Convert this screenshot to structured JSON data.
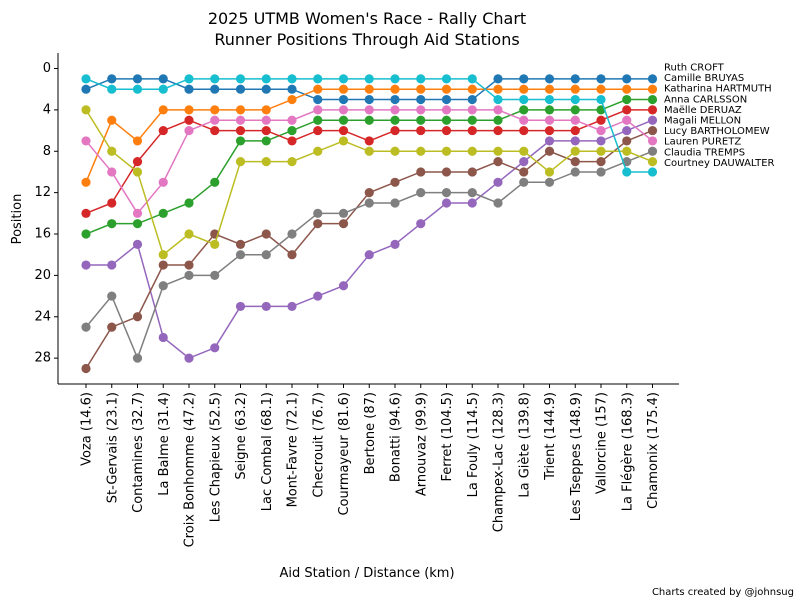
{
  "chart_data": {
    "type": "line",
    "title": "2025 UTMB Women's Race - Rally Chart",
    "subtitle": "Runner Positions Through Aid Stations",
    "xlabel": "Aid Station / Distance (km)",
    "ylabel": "Position",
    "ylim": [
      30.5,
      -1.5
    ],
    "y_inverted": true,
    "yticks": [
      0,
      4,
      8,
      12,
      16,
      20,
      24,
      28
    ],
    "grid": false,
    "credit": "Charts created by @johnsug",
    "categories": [
      "Voza (14.6)",
      "St-Gervais (23.1)",
      "Contamines (32.7)",
      "La Balme (31.4)",
      "Croix Bonhomme (47.2)",
      "Les Chapieux (52.5)",
      "Seigne (63.2)",
      "Lac Combal (68.1)",
      "Mont-Favre (72.1)",
      "Checrouit (76.7)",
      "Courmayeur (81.6)",
      "Bertone (87)",
      "Bonatti (94.6)",
      "Arnouvaz (99.9)",
      "Ferret (104.5)",
      "La Fouly (114.5)",
      "Champex-Lac (128.3)",
      "La Giète (139.8)",
      "Trient (144.9)",
      "Les Tseppes (148.9)",
      "Vallorcine (157)",
      "La Flégère (168.3)",
      "Chamonix (175.4)"
    ],
    "series": [
      {
        "name": "Ruth CROFT",
        "color": "#1f77b4",
        "values": [
          2,
          1,
          1,
          1,
          2,
          2,
          2,
          2,
          2,
          3,
          3,
          3,
          3,
          3,
          3,
          3,
          1,
          1,
          1,
          1,
          1,
          1,
          1
        ]
      },
      {
        "name": "Camille BRUYAS",
        "color": "#ff7f0e",
        "values": [
          11,
          5,
          7,
          4,
          4,
          4,
          4,
          4,
          3,
          2,
          2,
          2,
          2,
          2,
          2,
          2,
          2,
          2,
          2,
          2,
          2,
          2,
          2
        ]
      },
      {
        "name": "Katharina HARTMUTH",
        "color": "#2ca02c",
        "values": [
          16,
          15,
          15,
          14,
          13,
          11,
          7,
          7,
          6,
          5,
          5,
          5,
          5,
          5,
          5,
          5,
          5,
          4,
          4,
          4,
          4,
          3,
          3
        ]
      },
      {
        "name": "Anna CARLSSON",
        "color": "#d62728",
        "values": [
          14,
          13,
          9,
          6,
          5,
          6,
          6,
          6,
          7,
          6,
          6,
          7,
          6,
          6,
          6,
          6,
          6,
          6,
          6,
          6,
          5,
          4,
          4
        ]
      },
      {
        "name": "Maëlle DERUAZ",
        "color": "#9467bd",
        "values": [
          19,
          19,
          17,
          26,
          28,
          27,
          23,
          23,
          23,
          22,
          21,
          18,
          17,
          15,
          13,
          13,
          11,
          9,
          7,
          7,
          7,
          6,
          5
        ]
      },
      {
        "name": "Magali MELLON",
        "color": "#8c564b",
        "values": [
          29,
          25,
          24,
          19,
          19,
          16,
          17,
          16,
          18,
          15,
          15,
          12,
          11,
          10,
          10,
          10,
          9,
          10,
          8,
          9,
          9,
          7,
          6
        ]
      },
      {
        "name": "Lucy BARTHOLOMEW",
        "color": "#e377c2",
        "values": [
          7,
          10,
          14,
          11,
          6,
          5,
          5,
          5,
          5,
          4,
          4,
          4,
          4,
          4,
          4,
          4,
          4,
          5,
          5,
          5,
          6,
          5,
          7
        ]
      },
      {
        "name": "Lauren PURETZ",
        "color": "#7f7f7f",
        "values": [
          25,
          22,
          28,
          21,
          20,
          20,
          18,
          18,
          16,
          14,
          14,
          13,
          13,
          12,
          12,
          12,
          13,
          11,
          11,
          10,
          10,
          9,
          8
        ]
      },
      {
        "name": "Claudia TREMPS",
        "color": "#bcbd22",
        "values": [
          4,
          8,
          10,
          18,
          16,
          17,
          9,
          9,
          9,
          8,
          7,
          8,
          8,
          8,
          8,
          8,
          8,
          8,
          10,
          8,
          8,
          8,
          9
        ]
      },
      {
        "name": "Courtney DAUWALTER",
        "color": "#17becf",
        "values": [
          1,
          2,
          2,
          2,
          1,
          1,
          1,
          1,
          1,
          1,
          1,
          1,
          1,
          1,
          1,
          1,
          3,
          3,
          3,
          3,
          3,
          10,
          10
        ]
      }
    ]
  }
}
